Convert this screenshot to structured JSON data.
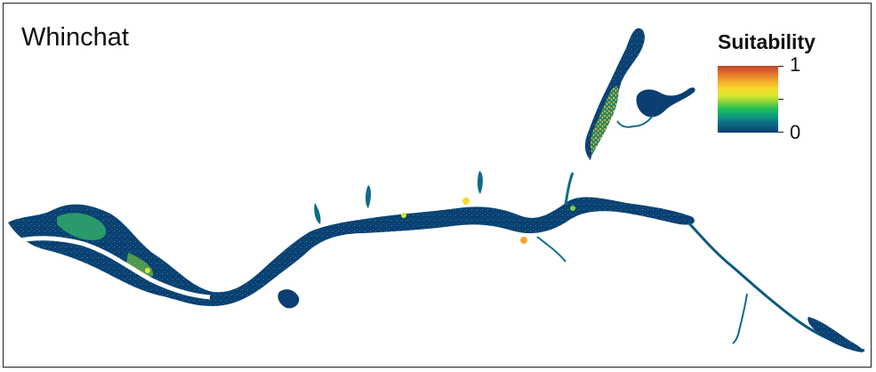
{
  "map": {
    "title": "Whinchat"
  },
  "legend": {
    "title": "Suitability",
    "max_label": "1",
    "min_label": "0",
    "colors": [
      "#0b3f73",
      "#0c6d84",
      "#0fa27a",
      "#22c155",
      "#7fd23a",
      "#d6e830",
      "#f5dc2a",
      "#f2a52c",
      "#e06b2a",
      "#c0432a"
    ]
  },
  "colors": {
    "low": "#0b3f73",
    "mid_low": "#0c6d84",
    "mid": "#22c155",
    "mid_high": "#f5dc2a",
    "high": "#c0432a"
  }
}
